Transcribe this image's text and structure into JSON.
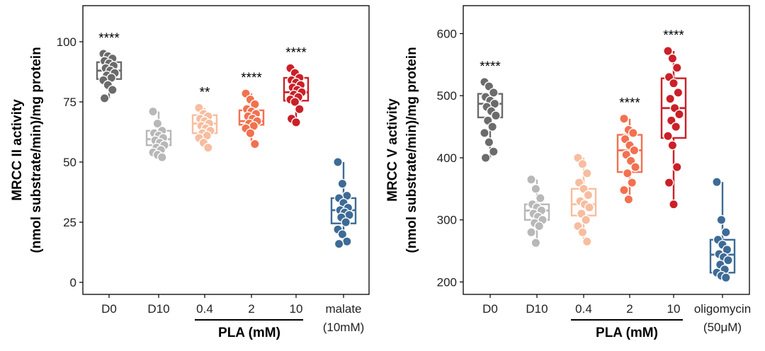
{
  "chart_data": [
    {
      "type": "box",
      "ylabel_line1": "MRCC II activity",
      "ylabel_line2": "(nmol substrate/min)/mg protein",
      "ylim": [
        -5,
        115
      ],
      "yticks": [
        0,
        25,
        50,
        75,
        100
      ],
      "ytick_labels": [
        "0",
        "25",
        "50",
        "75",
        "100"
      ],
      "categories": [
        "D0",
        "D10",
        "0.4",
        "2",
        "10",
        "malate"
      ],
      "category_sublabels": [
        "",
        "",
        "",
        "",
        "",
        "(10mM)"
      ],
      "group_label": "PLA (mM)",
      "group_span": [
        "0.4",
        "10"
      ],
      "series": [
        {
          "name": "D0",
          "color": "#6b6b6b",
          "q1": 84.5,
          "median": 88,
          "q3": 91.5,
          "whisker_low": 76.5,
          "whisker_high": 95,
          "points": [
            95,
            94,
            93,
            92,
            91,
            90,
            89,
            88,
            87,
            86,
            85,
            84,
            82,
            80,
            76.5
          ],
          "significance": "****"
        },
        {
          "name": "D10",
          "color": "#b8b8b8",
          "q1": 57,
          "median": 59.5,
          "q3": 63,
          "whisker_low": 52,
          "whisker_high": 71,
          "points": [
            71,
            66,
            63,
            62,
            61,
            60,
            59,
            58,
            57,
            56,
            55,
            54,
            53,
            52
          ],
          "significance": ""
        },
        {
          "name": "0.4",
          "color": "#f7bd9f",
          "q1": 62,
          "median": 66,
          "q3": 69.5,
          "whisker_low": 56,
          "whisker_high": 72.5,
          "points": [
            72.5,
            70,
            69,
            68,
            67,
            66,
            65,
            64,
            63,
            62,
            61,
            60,
            58,
            56
          ],
          "significance": "**"
        },
        {
          "name": "2",
          "color": "#f2714f",
          "q1": 65.5,
          "median": 67,
          "q3": 71.5,
          "whisker_low": 57.5,
          "whisker_high": 78.5,
          "points": [
            78.5,
            76,
            74,
            72,
            71,
            70,
            69,
            68,
            67,
            66,
            65,
            64,
            62,
            57.5
          ],
          "significance": "****"
        },
        {
          "name": "10",
          "color": "#cb2028",
          "q1": 75.5,
          "median": 79,
          "q3": 85,
          "whisker_low": 66.5,
          "whisker_high": 89,
          "points": [
            89,
            87,
            85,
            84,
            83,
            82,
            81,
            80,
            79,
            78,
            77,
            76,
            75,
            72,
            68,
            66.5
          ],
          "significance": "****"
        },
        {
          "name": "malate",
          "color": "#3e6b96",
          "q1": 24.5,
          "median": 30,
          "q3": 35,
          "whisker_low": 16,
          "whisker_high": 50,
          "points": [
            50,
            41,
            36,
            35,
            33,
            31,
            30,
            29,
            28,
            27,
            25,
            22,
            20,
            17,
            16
          ],
          "significance": ""
        }
      ]
    },
    {
      "type": "box",
      "ylabel_line1": "MRCC V activity",
      "ylabel_line2": "(nmol substrate/min)/mg protein",
      "ylim": [
        180,
        645
      ],
      "yticks": [
        200,
        300,
        400,
        500,
        600
      ],
      "ytick_labels": [
        "200",
        "300",
        "400",
        "500",
        "600"
      ],
      "categories": [
        "D0",
        "D10",
        "0.4",
        "2",
        "10",
        "oligomycin"
      ],
      "category_sublabels": [
        "",
        "",
        "",
        "",
        "",
        "(50μM)"
      ],
      "group_label": "PLA (mM)",
      "group_span": [
        "0.4",
        "10"
      ],
      "series": [
        {
          "name": "D0",
          "color": "#6b6b6b",
          "q1": 465,
          "median": 487,
          "q3": 503,
          "whisker_low": 400,
          "whisker_high": 522,
          "points": [
            522,
            515,
            505,
            498,
            492,
            487,
            482,
            475,
            468,
            460,
            450,
            440,
            425,
            410,
            400
          ],
          "significance": "****"
        },
        {
          "name": "D10",
          "color": "#b8b8b8",
          "q1": 300,
          "median": 315,
          "q3": 325,
          "whisker_low": 263,
          "whisker_high": 365,
          "points": [
            365,
            350,
            335,
            325,
            320,
            315,
            310,
            305,
            300,
            295,
            290,
            280,
            263
          ],
          "significance": ""
        },
        {
          "name": "0.4",
          "color": "#f7bd9f",
          "q1": 307,
          "median": 325,
          "q3": 350,
          "whisker_low": 265,
          "whisker_high": 400,
          "points": [
            400,
            390,
            375,
            360,
            350,
            340,
            330,
            325,
            320,
            310,
            300,
            290,
            280,
            265
          ],
          "significance": ""
        },
        {
          "name": "2",
          "color": "#f2714f",
          "q1": 377,
          "median": 412,
          "q3": 437,
          "whisker_low": 333,
          "whisker_high": 463,
          "points": [
            463,
            445,
            440,
            430,
            420,
            412,
            405,
            395,
            385,
            375,
            360,
            348,
            333
          ],
          "significance": "****"
        },
        {
          "name": "10",
          "color": "#cb2028",
          "q1": 432,
          "median": 480,
          "q3": 528,
          "whisker_low": 325,
          "whisker_high": 572,
          "points": [
            572,
            560,
            545,
            530,
            520,
            505,
            495,
            480,
            470,
            460,
            450,
            435,
            420,
            385,
            360,
            325
          ],
          "significance": "****"
        },
        {
          "name": "oligomycin",
          "color": "#3e6b96",
          "q1": 215,
          "median": 244,
          "q3": 268,
          "whisker_low": 207,
          "whisker_high": 361,
          "points": [
            361,
            300,
            280,
            268,
            260,
            252,
            245,
            240,
            235,
            228,
            220,
            215,
            210,
            207
          ],
          "significance": ""
        }
      ]
    }
  ]
}
